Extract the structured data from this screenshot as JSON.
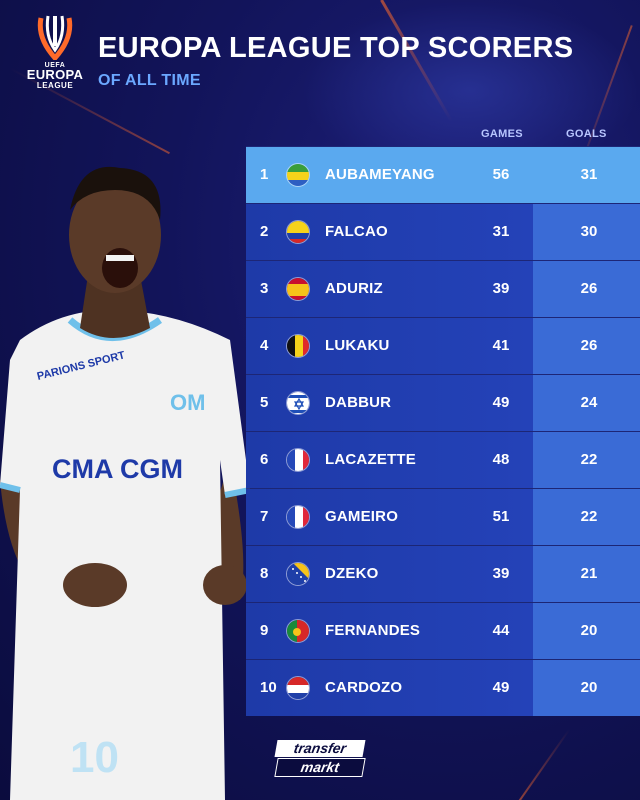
{
  "logo": {
    "uefa": "UEFA",
    "europa": "EUROPA",
    "league": "LEAGUE"
  },
  "header": {
    "title": "EUROPA LEAGUE TOP SCORERS",
    "subtitle": "OF ALL TIME"
  },
  "columns": {
    "games": "GAMES",
    "goals": "GOALS"
  },
  "players": [
    {
      "rank": "1",
      "name": "AUBAMEYANG",
      "games": "56",
      "goals": "31",
      "flag": "gabon"
    },
    {
      "rank": "2",
      "name": "FALCAO",
      "games": "31",
      "goals": "30",
      "flag": "colombia"
    },
    {
      "rank": "3",
      "name": "ADURIZ",
      "games": "39",
      "goals": "26",
      "flag": "spain"
    },
    {
      "rank": "4",
      "name": "LUKAKU",
      "games": "41",
      "goals": "26",
      "flag": "belgium"
    },
    {
      "rank": "5",
      "name": "DABBUR",
      "games": "49",
      "goals": "24",
      "flag": "israel"
    },
    {
      "rank": "6",
      "name": "LACAZETTE",
      "games": "48",
      "goals": "22",
      "flag": "france"
    },
    {
      "rank": "7",
      "name": "GAMEIRO",
      "games": "51",
      "goals": "22",
      "flag": "france"
    },
    {
      "rank": "8",
      "name": "DZEKO",
      "games": "39",
      "goals": "21",
      "flag": "bosnia"
    },
    {
      "rank": "9",
      "name": "FERNANDES",
      "games": "44",
      "goals": "20",
      "flag": "portugal"
    },
    {
      "rank": "10",
      "name": "CARDOZO",
      "games": "49",
      "goals": "20",
      "flag": "paraguay"
    }
  ],
  "jersey": {
    "sponsor": "CMA CGM",
    "sleeve": "PARIONS SPORT",
    "number": "10"
  },
  "brand": {
    "line1": "transfer",
    "line2": "markt"
  },
  "colors": {
    "accent": "#6ba8ff",
    "highlight_row": "#5aa9ef",
    "row": "#2442b8",
    "goal_cell": "#3a6bd6",
    "background": "#12145a"
  }
}
